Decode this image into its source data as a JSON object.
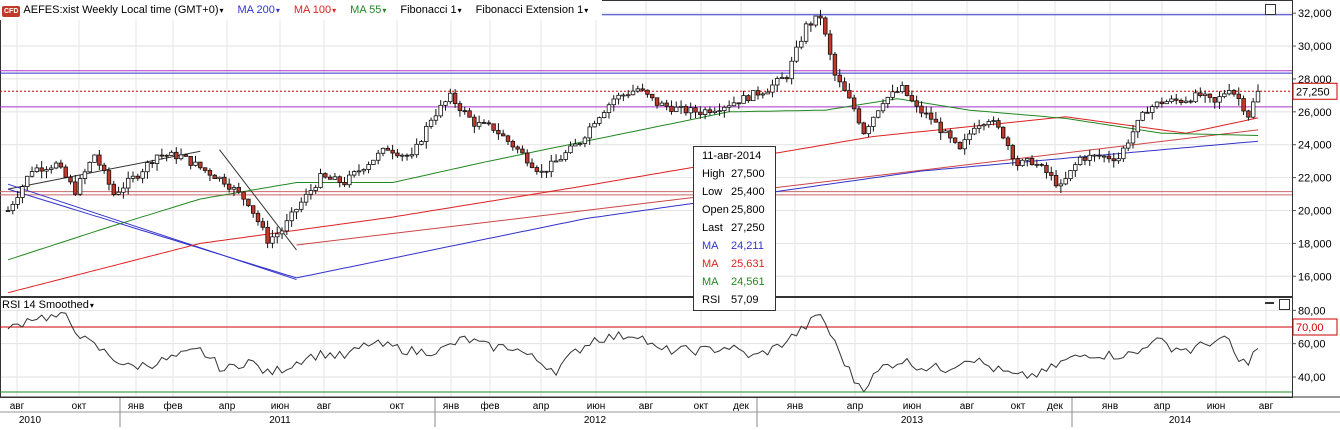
{
  "header": {
    "symbol_badge": "CFD",
    "symbol": "AEFES:xist Weekly Local time (GMT+0)",
    "items": [
      {
        "label": "MA 200",
        "color": "#3333cc"
      },
      {
        "label": "MA 100",
        "color": "#dd2222"
      },
      {
        "label": "MA 55",
        "color": "#228822"
      },
      {
        "label": "Fibonacci 1",
        "color": "#000000"
      },
      {
        "label": "Fibonacci Extension 1",
        "color": "#000000"
      }
    ]
  },
  "rsi_panel": {
    "label": "RSI 14 Smoothed"
  },
  "price_axis": {
    "ticks": [
      "32,000",
      "30,000",
      "28,000",
      "26,000",
      "24,000",
      "22,000",
      "20,000",
      "18,000",
      "16,000"
    ],
    "last_price_label": "27,250"
  },
  "rsi_axis": {
    "ticks": [
      "80,00",
      "60,00",
      "40,00"
    ],
    "level_label": "70,00"
  },
  "time_axis": {
    "months": [
      "авг",
      "окт",
      "янв",
      "фев",
      "апр",
      "июн",
      "авг",
      "окт",
      "янв",
      "фев",
      "апр",
      "июн",
      "авг",
      "окт",
      "дек",
      "янв",
      "апр",
      "июн",
      "авг",
      "окт",
      "дек",
      "янв",
      "апр",
      "июн",
      "авг"
    ],
    "years": [
      "2010",
      "2011",
      "2012",
      "2013",
      "2014"
    ]
  },
  "tooltip": {
    "date": "11-авг-2014",
    "rows": [
      {
        "k": "High",
        "v": "27,500",
        "color": "#000000"
      },
      {
        "k": "Low",
        "v": "25,400",
        "color": "#000000"
      },
      {
        "k": "Open",
        "v": "25,800",
        "color": "#000000"
      },
      {
        "k": "Last",
        "v": "27,250",
        "color": "#000000"
      },
      {
        "k": "MA",
        "v": "24,211",
        "color": "#3333cc"
      },
      {
        "k": "MA",
        "v": "25,631",
        "color": "#dd2222"
      },
      {
        "k": "MA",
        "v": "24,561",
        "color": "#228822"
      },
      {
        "k": "RSI",
        "v": "57,09",
        "color": "#000000"
      }
    ]
  },
  "chart_data": {
    "type": "candlestick",
    "title": "AEFES:xist Weekly",
    "ylim": [
      14800,
      32800
    ],
    "rsi_ylim": [
      28,
      88
    ],
    "rsi_level": 70,
    "last": 27250,
    "horizontal_lines": [
      {
        "value": 31900,
        "color": "#3333cc"
      },
      {
        "value": 28500,
        "color": "#aa33cc"
      },
      {
        "value": 28350,
        "color": "#3333cc"
      },
      {
        "value": 27250,
        "color": "#cc0000",
        "style": "dotted"
      },
      {
        "value": 26300,
        "color": "#aa33cc"
      },
      {
        "value": 21150,
        "color": "#cc6666"
      },
      {
        "value": 20950,
        "color": "#cc6666"
      }
    ],
    "close_anchors": [
      [
        0,
        20000
      ],
      [
        5,
        22500
      ],
      [
        10,
        22800
      ],
      [
        14,
        21200
      ],
      [
        18,
        23400
      ],
      [
        22,
        21000
      ],
      [
        27,
        22200
      ],
      [
        31,
        23400
      ],
      [
        36,
        23300
      ],
      [
        40,
        22600
      ],
      [
        45,
        21800
      ],
      [
        50,
        20500
      ],
      [
        54,
        18200
      ],
      [
        57,
        18800
      ],
      [
        60,
        20100
      ],
      [
        65,
        22000
      ],
      [
        70,
        21700
      ],
      [
        74,
        22700
      ],
      [
        79,
        23800
      ],
      [
        84,
        23200
      ],
      [
        88,
        25600
      ],
      [
        92,
        26900
      ],
      [
        97,
        25300
      ],
      [
        101,
        25000
      ],
      [
        106,
        23700
      ],
      [
        111,
        22300
      ],
      [
        115,
        23200
      ],
      [
        119,
        24200
      ],
      [
        122,
        25500
      ],
      [
        126,
        26800
      ],
      [
        131,
        27400
      ],
      [
        135,
        26500
      ],
      [
        140,
        26100
      ],
      [
        144,
        26000
      ],
      [
        149,
        26400
      ],
      [
        153,
        26800
      ],
      [
        158,
        27400
      ],
      [
        162,
        28200
      ],
      [
        166,
        31200
      ],
      [
        169,
        31800
      ],
      [
        172,
        28200
      ],
      [
        176,
        26200
      ],
      [
        178,
        24800
      ],
      [
        182,
        26700
      ],
      [
        186,
        27400
      ],
      [
        189,
        26200
      ],
      [
        192,
        25600
      ],
      [
        195,
        24600
      ],
      [
        198,
        23600
      ],
      [
        201,
        25200
      ],
      [
        204,
        25600
      ],
      [
        207,
        24600
      ],
      [
        210,
        22800
      ],
      [
        213,
        23000
      ],
      [
        216,
        22300
      ],
      [
        219,
        21400
      ],
      [
        223,
        23200
      ],
      [
        227,
        23300
      ],
      [
        231,
        23200
      ],
      [
        234,
        24800
      ],
      [
        237,
        26200
      ],
      [
        240,
        26600
      ],
      [
        244,
        26700
      ],
      [
        248,
        27000
      ],
      [
        251,
        26500
      ],
      [
        254,
        27500
      ],
      [
        256,
        26800
      ],
      [
        258,
        25800
      ],
      [
        260,
        27250
      ]
    ],
    "ma200": [
      [
        0,
        21300
      ],
      [
        60,
        15900
      ],
      [
        120,
        19500
      ],
      [
        190,
        22400
      ],
      [
        260,
        24211
      ]
    ],
    "ma100": [
      [
        0,
        15000
      ],
      [
        40,
        18000
      ],
      [
        80,
        19600
      ],
      [
        120,
        21500
      ],
      [
        180,
        24500
      ],
      [
        220,
        25700
      ],
      [
        245,
        24700
      ],
      [
        260,
        25631
      ]
    ],
    "ma55": [
      [
        0,
        17000
      ],
      [
        20,
        18900
      ],
      [
        40,
        20700
      ],
      [
        60,
        21700
      ],
      [
        80,
        21700
      ],
      [
        100,
        23000
      ],
      [
        130,
        24800
      ],
      [
        150,
        26000
      ],
      [
        170,
        26100
      ],
      [
        185,
        26800
      ],
      [
        200,
        26100
      ],
      [
        220,
        25600
      ],
      [
        240,
        24700
      ],
      [
        260,
        24561
      ]
    ],
    "rsi_anchors": [
      [
        0,
        68
      ],
      [
        5,
        76
      ],
      [
        12,
        76
      ],
      [
        16,
        62
      ],
      [
        20,
        55
      ],
      [
        25,
        46
      ],
      [
        30,
        48
      ],
      [
        35,
        52
      ],
      [
        40,
        56
      ],
      [
        45,
        44
      ],
      [
        50,
        50
      ],
      [
        54,
        42
      ],
      [
        58,
        46
      ],
      [
        62,
        52
      ],
      [
        66,
        54
      ],
      [
        70,
        52
      ],
      [
        75,
        60
      ],
      [
        80,
        58
      ],
      [
        85,
        55
      ],
      [
        90,
        56
      ],
      [
        95,
        63
      ],
      [
        100,
        58
      ],
      [
        105,
        58
      ],
      [
        110,
        50
      ],
      [
        114,
        44
      ],
      [
        118,
        55
      ],
      [
        122,
        63
      ],
      [
        126,
        64
      ],
      [
        131,
        66
      ],
      [
        135,
        56
      ],
      [
        140,
        56
      ],
      [
        145,
        56
      ],
      [
        150,
        58
      ],
      [
        155,
        52
      ],
      [
        160,
        58
      ],
      [
        165,
        68
      ],
      [
        169,
        78
      ],
      [
        172,
        60
      ],
      [
        176,
        38
      ],
      [
        178,
        34
      ],
      [
        182,
        46
      ],
      [
        186,
        50
      ],
      [
        190,
        46
      ],
      [
        195,
        45
      ],
      [
        200,
        52
      ],
      [
        205,
        45
      ],
      [
        210,
        40
      ],
      [
        215,
        42
      ],
      [
        220,
        50
      ],
      [
        225,
        54
      ],
      [
        230,
        53
      ],
      [
        235,
        54
      ],
      [
        238,
        63
      ],
      [
        242,
        58
      ],
      [
        246,
        56
      ],
      [
        250,
        61
      ],
      [
        254,
        62
      ],
      [
        256,
        48
      ],
      [
        258,
        50
      ],
      [
        260,
        57
      ]
    ],
    "fibonacci_lines": [
      {
        "from": [
          0,
          21300
        ],
        "to": [
          40,
          23600
        ]
      },
      {
        "from": [
          0,
          21600
        ],
        "to": [
          60,
          15800
        ]
      },
      {
        "from": [
          44,
          23700
        ],
        "to": [
          60,
          17600
        ]
      },
      {
        "from": [
          60,
          17900
        ],
        "to": [
          260,
          24900
        ]
      }
    ]
  }
}
